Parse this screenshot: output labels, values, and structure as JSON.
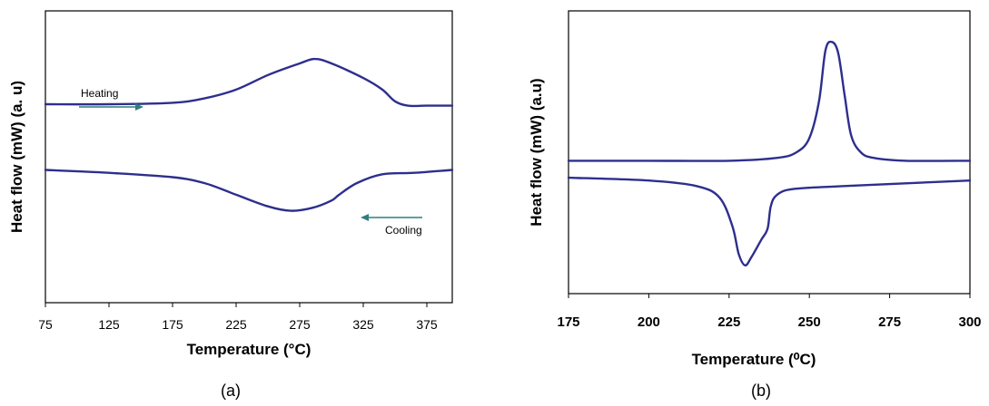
{
  "chart_data": [
    {
      "type": "line",
      "panel_label": "(a)",
      "xlabel": "Temperature (°C)",
      "ylabel": "Heat flow (mW) (a. u)",
      "xlim": [
        75,
        395
      ],
      "ylim": [
        0,
        1
      ],
      "xticks": [
        "75",
        "125",
        "175",
        "225",
        "275",
        "325",
        "375"
      ],
      "yticks": [],
      "grid": false,
      "annotations": [
        {
          "text": "Heating",
          "arrow": "right"
        },
        {
          "text": "Cooling",
          "arrow": "left"
        }
      ],
      "series": [
        {
          "name": "Heating",
          "x": [
            75,
            125,
            175,
            200,
            225,
            250,
            275,
            287,
            300,
            325,
            340,
            350,
            360,
            375,
            395
          ],
          "y": [
            0.68,
            0.68,
            0.685,
            0.7,
            0.73,
            0.78,
            0.82,
            0.835,
            0.82,
            0.77,
            0.73,
            0.69,
            0.675,
            0.675,
            0.675
          ]
        },
        {
          "name": "Cooling",
          "x": [
            75,
            125,
            175,
            200,
            225,
            250,
            268,
            285,
            300,
            306,
            320,
            340,
            365,
            395
          ],
          "y": [
            0.455,
            0.445,
            0.43,
            0.41,
            0.37,
            0.33,
            0.315,
            0.325,
            0.35,
            0.37,
            0.41,
            0.44,
            0.445,
            0.455
          ]
        }
      ]
    },
    {
      "type": "line",
      "panel_label": "(b)",
      "xlabel": "Temperature (⁰C)",
      "ylabel": "Heat flow (mW) (a.u)",
      "xlim": [
        175,
        300
      ],
      "ylim": [
        0,
        1
      ],
      "xticks": [
        "175",
        "200",
        "225",
        "250",
        "275",
        "300"
      ],
      "yticks": [],
      "grid": false,
      "series": [
        {
          "name": "Heating",
          "x": [
            175,
            200,
            225,
            240,
            246,
            250,
            253,
            255,
            257,
            259,
            261,
            263,
            266,
            270,
            280,
            300
          ],
          "y": [
            0.47,
            0.47,
            0.47,
            0.48,
            0.5,
            0.55,
            0.68,
            0.86,
            0.89,
            0.85,
            0.7,
            0.56,
            0.5,
            0.48,
            0.47,
            0.47
          ]
        },
        {
          "name": "Cooling",
          "x": [
            175,
            200,
            215,
            222,
            226,
            228,
            230,
            232,
            235,
            237,
            238,
            240,
            245,
            260,
            300
          ],
          "y": [
            0.41,
            0.4,
            0.38,
            0.34,
            0.24,
            0.14,
            0.1,
            0.13,
            0.19,
            0.23,
            0.31,
            0.35,
            0.37,
            0.38,
            0.4
          ]
        }
      ]
    }
  ]
}
